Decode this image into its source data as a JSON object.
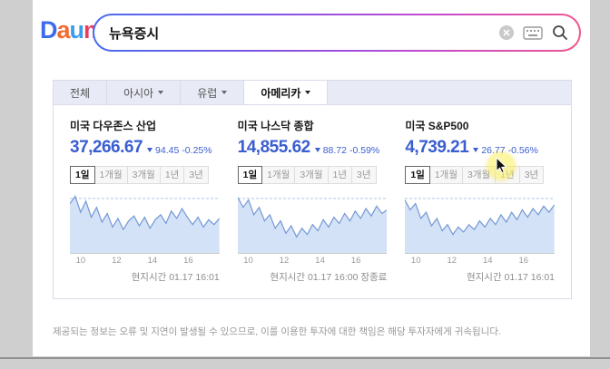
{
  "colors": {
    "accent_blue": "#3a5ed0",
    "chart_line": "#7498d6",
    "chart_fill": "#d3e2f6",
    "chart_ref_line": "#aac6ea"
  },
  "header": {
    "logo_letters": [
      {
        "ch": "D",
        "color": "#3b6cf0"
      },
      {
        "ch": "a",
        "color": "#f26c32"
      },
      {
        "ch": "u",
        "color": "#3b9df0"
      },
      {
        "ch": "m",
        "color": "#e83e5e"
      }
    ],
    "search_value": "뉴욕증시"
  },
  "region_tabs": [
    {
      "label": "전체"
    },
    {
      "label": "아시아"
    },
    {
      "label": "유럽"
    },
    {
      "label": "아메리카"
    }
  ],
  "period_tabs": [
    "1일",
    "1개월",
    "3개월",
    "1년",
    "3년"
  ],
  "x_ticks": [
    "10",
    "12",
    "14",
    "16"
  ],
  "indices": [
    {
      "name": "미국 다우존스 산업",
      "value": "37,266.67",
      "change": "94.45",
      "change_pct": "-0.25%",
      "direction": "down",
      "local_time": "현지시간 01.17 16:01"
    },
    {
      "name": "미국 나스닥 종합",
      "value": "14,855.62",
      "change": "88.72",
      "change_pct": "-0.59%",
      "direction": "down",
      "local_time": "현지시간 01.17 16:00 장종료"
    },
    {
      "name": "미국 S&P500",
      "value": "4,739.21",
      "change": "26.77",
      "change_pct": "-0.56%",
      "direction": "down",
      "local_time": "현지시간 01.17 16:01"
    }
  ],
  "chart_data": [
    {
      "type": "area",
      "title": "미국 다우존스 산업 1일",
      "x_ticks": [
        "10",
        "12",
        "14",
        "16"
      ],
      "values_norm": [
        0.8,
        0.92,
        0.66,
        0.84,
        0.58,
        0.74,
        0.5,
        0.64,
        0.42,
        0.56,
        0.38,
        0.52,
        0.6,
        0.44,
        0.58,
        0.4,
        0.54,
        0.62,
        0.48,
        0.68,
        0.56,
        0.72,
        0.58,
        0.46,
        0.58,
        0.42,
        0.54,
        0.46,
        0.56
      ]
    },
    {
      "type": "area",
      "title": "미국 나스닥 종합 1일",
      "x_ticks": [
        "10",
        "12",
        "14",
        "16"
      ],
      "values_norm": [
        0.9,
        0.74,
        0.86,
        0.62,
        0.74,
        0.52,
        0.62,
        0.4,
        0.52,
        0.32,
        0.44,
        0.26,
        0.4,
        0.3,
        0.46,
        0.36,
        0.54,
        0.42,
        0.58,
        0.48,
        0.64,
        0.52,
        0.68,
        0.56,
        0.72,
        0.6,
        0.76,
        0.64,
        0.7
      ]
    },
    {
      "type": "area",
      "title": "미국 S&P500 1일",
      "x_ticks": [
        "10",
        "12",
        "14",
        "16"
      ],
      "values_norm": [
        0.86,
        0.7,
        0.8,
        0.56,
        0.66,
        0.44,
        0.56,
        0.36,
        0.46,
        0.3,
        0.42,
        0.34,
        0.46,
        0.38,
        0.52,
        0.42,
        0.56,
        0.46,
        0.62,
        0.5,
        0.66,
        0.54,
        0.7,
        0.58,
        0.72,
        0.62,
        0.76,
        0.66,
        0.78
      ]
    }
  ],
  "disclaimer": "제공되는 정보는 오류 및 지연이 발생될 수 있으므로, 이를 이용한 투자에 대한 책임은 해당 투자자에게 귀속됩니다."
}
